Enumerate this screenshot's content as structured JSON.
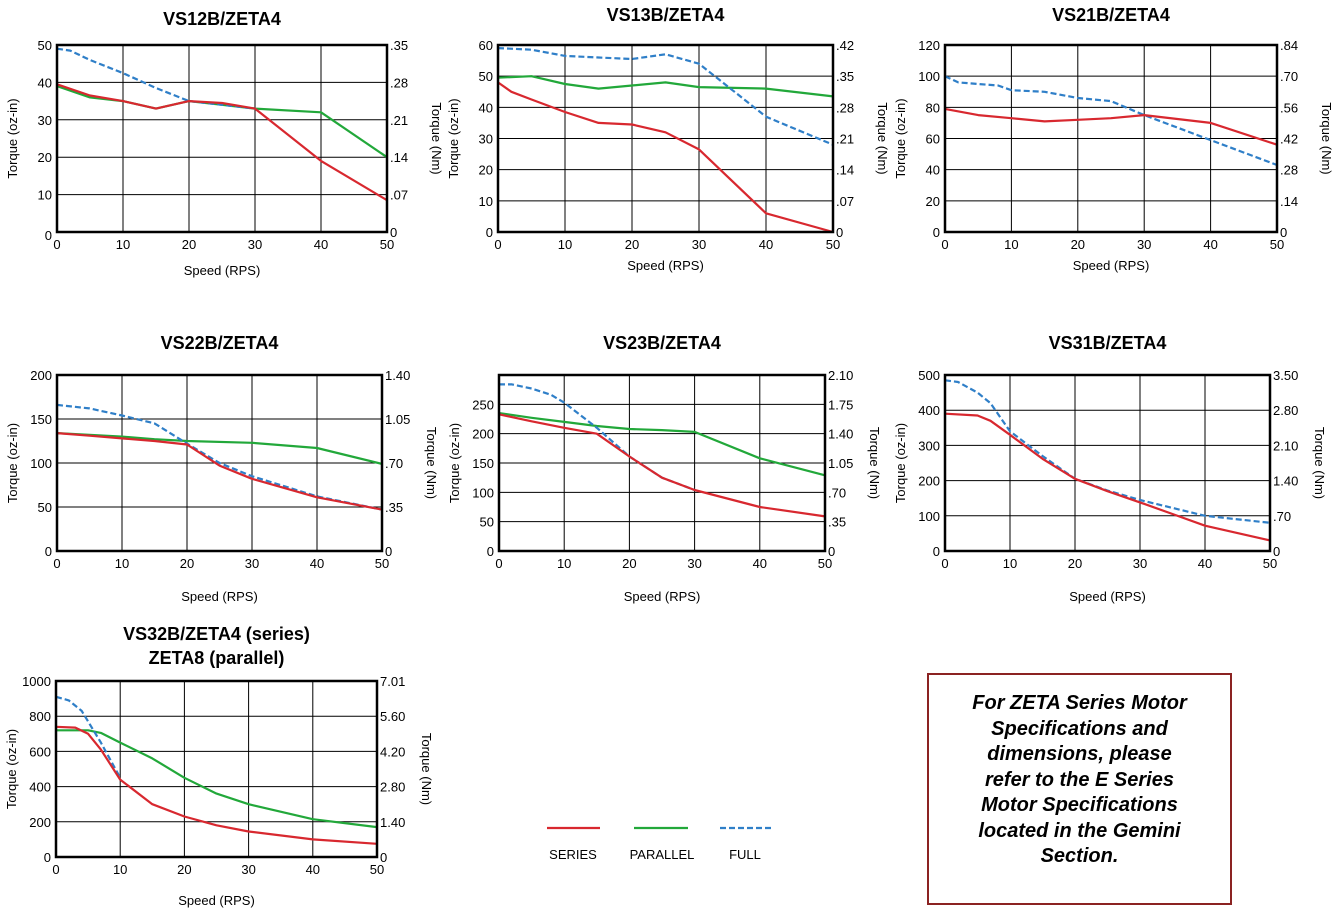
{
  "colors": {
    "series": "#d8282f",
    "parallel": "#22a83a",
    "full": "#2f7fc8",
    "grid": "#000000",
    "note_border": "#8b2322"
  },
  "legend": {
    "items": [
      {
        "key": "series",
        "label": "SERIES",
        "style": "solid"
      },
      {
        "key": "parallel",
        "label": "PARALLEL",
        "style": "solid"
      },
      {
        "key": "full",
        "label": "FULL",
        "style": "dashed"
      }
    ]
  },
  "note": {
    "text": "For ZETA Series Motor\nSpecifications and\ndimensions, please\nrefer to the E Series\nMotor Specifications\nlocated in the Gemini\nSection."
  },
  "chart_data": [
    {
      "type": "line",
      "title": "VS12B/ZETA4",
      "xlabel": "Speed (RPS)",
      "ylabel": "Torque (oz-in)",
      "y2label": "Torque (Nm)",
      "xlim": [
        0,
        50
      ],
      "ylim": [
        0,
        50
      ],
      "xticks": [
        "0",
        "10",
        "20",
        "30",
        "40",
        "50"
      ],
      "yticks": [
        "0",
        "10",
        "20",
        "30",
        "40",
        "50"
      ],
      "y2ticks": [
        "0",
        ".07",
        ".14",
        ".21",
        ".28",
        ".35"
      ],
      "grid": true,
      "series": [
        {
          "name": "SERIES",
          "x": [
            0,
            5,
            10,
            15,
            20,
            25,
            30,
            40,
            50
          ],
          "y": [
            39.5,
            36.5,
            35,
            33,
            35,
            34.5,
            33,
            19,
            8.5
          ]
        },
        {
          "name": "PARALLEL",
          "x": [
            0,
            5,
            10,
            15,
            20,
            25,
            30,
            40,
            50
          ],
          "y": [
            39,
            36,
            35,
            33,
            35,
            34,
            33,
            32,
            20
          ]
        },
        {
          "name": "FULL",
          "x": [
            0,
            2,
            5,
            10,
            15,
            20,
            25,
            30
          ],
          "y": [
            49,
            48.5,
            46,
            42.5,
            38.5,
            35,
            34,
            33
          ]
        }
      ]
    },
    {
      "type": "line",
      "title": "VS13B/ZETA4",
      "xlabel": "Speed (RPS)",
      "ylabel": "Torque (oz-in)",
      "y2label": "Torque (Nm)",
      "xlim": [
        0,
        50
      ],
      "ylim": [
        0,
        60
      ],
      "xticks": [
        "0",
        "10",
        "20",
        "30",
        "40",
        "50"
      ],
      "yticks": [
        "0",
        "10",
        "20",
        "30",
        "40",
        "50",
        "60"
      ],
      "y2ticks": [
        "0",
        ".07",
        ".14",
        ".21",
        ".28",
        ".35",
        ".42"
      ],
      "grid": true,
      "series": [
        {
          "name": "SERIES",
          "x": [
            0,
            2,
            5,
            10,
            15,
            20,
            25,
            30,
            40,
            50
          ],
          "y": [
            48,
            45,
            42.5,
            38.5,
            35,
            34.5,
            32,
            26.5,
            6,
            0
          ]
        },
        {
          "name": "PARALLEL",
          "x": [
            0,
            5,
            10,
            15,
            20,
            25,
            30,
            40,
            50
          ],
          "y": [
            49.5,
            50,
            47.5,
            46,
            47,
            48,
            46.5,
            46,
            43.5
          ]
        },
        {
          "name": "FULL",
          "x": [
            0,
            5,
            10,
            15,
            20,
            25,
            30,
            40,
            50
          ],
          "y": [
            59,
            58.5,
            56.5,
            56,
            55.5,
            57,
            54,
            37,
            28
          ]
        }
      ]
    },
    {
      "type": "line",
      "title": "VS21B/ZETA4",
      "xlabel": "Speed (RPS)",
      "ylabel": "Torque (oz-in)",
      "y2label": "Torque (Nm)",
      "xlim": [
        0,
        50
      ],
      "ylim": [
        0,
        120
      ],
      "xticks": [
        "0",
        "10",
        "20",
        "30",
        "40",
        "50"
      ],
      "yticks": [
        "0",
        "20",
        "40",
        "60",
        "80",
        "100",
        "120"
      ],
      "y2ticks": [
        "0",
        ".14",
        ".28",
        ".42",
        ".56",
        ".70",
        ".84"
      ],
      "grid": true,
      "series": [
        {
          "name": "SERIES",
          "x": [
            0,
            5,
            10,
            15,
            20,
            25,
            30,
            40,
            50
          ],
          "y": [
            79,
            75,
            73,
            71,
            72,
            73,
            75,
            70,
            56
          ]
        },
        {
          "name": "FULL",
          "x": [
            0,
            2,
            5,
            8,
            10,
            15,
            20,
            25,
            30,
            40,
            50
          ],
          "y": [
            100,
            96,
            95,
            94,
            91,
            90,
            86,
            84,
            75,
            59,
            43
          ]
        }
      ]
    },
    {
      "type": "line",
      "title": "VS22B/ZETA4",
      "xlabel": "Speed (RPS)",
      "ylabel": "Torque (oz-in)",
      "y2label": "Torque (Nm)",
      "xlim": [
        0,
        50
      ],
      "ylim": [
        0,
        200
      ],
      "xticks": [
        "0",
        "10",
        "20",
        "30",
        "40",
        "50"
      ],
      "yticks": [
        "0",
        "50",
        "100",
        "150",
        "200"
      ],
      "y2ticks": [
        "0",
        ".35",
        ".70",
        "1.05",
        "1.40"
      ],
      "grid": true,
      "series": [
        {
          "name": "SERIES",
          "x": [
            0,
            5,
            10,
            15,
            20,
            25,
            30,
            40,
            50
          ],
          "y": [
            134,
            131,
            128,
            125,
            121,
            97,
            82,
            61,
            47
          ]
        },
        {
          "name": "PARALLEL",
          "x": [
            0,
            5,
            10,
            15,
            20,
            30,
            40,
            50
          ],
          "y": [
            134,
            132,
            130,
            127,
            125,
            123,
            117,
            99
          ]
        },
        {
          "name": "FULL",
          "x": [
            0,
            5,
            10,
            15,
            20,
            25,
            30,
            40,
            50
          ],
          "y": [
            166,
            162,
            154,
            145,
            122,
            100,
            85,
            62,
            47
          ]
        }
      ]
    },
    {
      "type": "line",
      "title": "VS23B/ZETA4",
      "xlabel": "Speed (RPS)",
      "ylabel": "Torque (oz-in)",
      "y2label": "Torque (Nm)",
      "xlim": [
        0,
        50
      ],
      "ylim": [
        0,
        300
      ],
      "xticks": [
        "0",
        "10",
        "20",
        "30",
        "40",
        "50"
      ],
      "yticks": [
        "0",
        "50",
        "100",
        "150",
        "200",
        "250"
      ],
      "y2ticks": [
        "0",
        ".35",
        ".70",
        "1.05",
        "1.40",
        "1.75",
        "2.10"
      ],
      "grid": true,
      "series": [
        {
          "name": "SERIES",
          "x": [
            0,
            5,
            10,
            15,
            20,
            25,
            30,
            40,
            50
          ],
          "y": [
            233,
            221,
            210,
            200,
            161,
            125,
            104,
            75,
            59
          ]
        },
        {
          "name": "PARALLEL",
          "x": [
            0,
            5,
            10,
            15,
            20,
            25,
            30,
            40,
            50
          ],
          "y": [
            235,
            227,
            220,
            213,
            208,
            206,
            203,
            158,
            129
          ]
        },
        {
          "name": "FULL",
          "x": [
            0,
            2,
            5,
            8,
            10,
            15,
            20,
            25,
            30
          ],
          "y": [
            284,
            284,
            277,
            266,
            253,
            210,
            161,
            125,
            104
          ]
        }
      ]
    },
    {
      "type": "line",
      "title": "VS31B/ZETA4",
      "xlabel": "Speed (RPS)",
      "ylabel": "Torque (oz-in)",
      "y2label": "Torque (Nm)",
      "xlim": [
        0,
        50
      ],
      "ylim": [
        0,
        500
      ],
      "xticks": [
        "0",
        "10",
        "20",
        "30",
        "40",
        "50"
      ],
      "yticks": [
        "0",
        "100",
        "200",
        "300",
        "400",
        "500"
      ],
      "y2ticks": [
        "0",
        ".70",
        "1.40",
        "2.10",
        "2.80",
        "3.50"
      ],
      "grid": true,
      "series": [
        {
          "name": "SERIES",
          "x": [
            0,
            5,
            7,
            10,
            15,
            20,
            25,
            30,
            35,
            40,
            50
          ],
          "y": [
            390,
            385,
            370,
            330,
            262,
            205,
            170,
            138,
            105,
            72,
            30
          ]
        },
        {
          "name": "FULL",
          "x": [
            0,
            2,
            5,
            7,
            10,
            15,
            20,
            25,
            30,
            40,
            50
          ],
          "y": [
            485,
            480,
            450,
            420,
            340,
            270,
            205,
            172,
            145,
            100,
            80
          ]
        }
      ]
    },
    {
      "type": "line",
      "title": "VS32B/ZETA4 (series)",
      "subtitle": "ZETA8 (parallel)",
      "xlabel": "Speed (RPS)",
      "ylabel": "Torque (oz-in)",
      "y2label": "Torque (Nm)",
      "xlim": [
        0,
        50
      ],
      "ylim": [
        0,
        1000
      ],
      "xticks": [
        "0",
        "10",
        "20",
        "30",
        "40",
        "50"
      ],
      "yticks": [
        "0",
        "200",
        "400",
        "600",
        "800",
        "1000"
      ],
      "y2ticks": [
        "0",
        "1.40",
        "2.80",
        "4.20",
        "5.60",
        "7.01"
      ],
      "grid": true,
      "series": [
        {
          "name": "SERIES",
          "x": [
            0,
            3,
            5,
            7,
            10,
            15,
            20,
            25,
            30,
            40,
            50
          ],
          "y": [
            740,
            735,
            700,
            610,
            440,
            300,
            230,
            180,
            145,
            100,
            75
          ]
        },
        {
          "name": "PARALLEL",
          "x": [
            0,
            5,
            7,
            10,
            15,
            20,
            25,
            30,
            40,
            50
          ],
          "y": [
            720,
            720,
            705,
            650,
            560,
            450,
            360,
            300,
            215,
            170
          ]
        },
        {
          "name": "FULL",
          "x": [
            0,
            2,
            4,
            7,
            10
          ],
          "y": [
            910,
            890,
            830,
            650,
            450
          ]
        }
      ]
    }
  ]
}
